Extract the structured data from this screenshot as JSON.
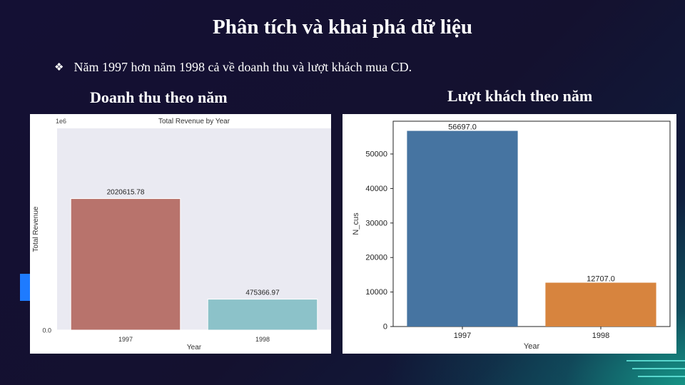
{
  "slide": {
    "title": "Phân tích và khai phá dữ liệu",
    "bullet_icon": "diamond-bullet-icon",
    "bullet": "Năm 1997 hơn năm 1998 cả về doanh thu và lượt khách mua CD.",
    "left_heading": "Doanh thu theo năm",
    "right_heading": "Lượt khách theo năm"
  },
  "chart_data": [
    {
      "type": "bar",
      "title": "Total Revenue by Year",
      "xlabel": "Year",
      "ylabel": "Total Revenue",
      "scale_label": "1e6",
      "categories": [
        "1997",
        "1998"
      ],
      "values": [
        2020615.78,
        475366.97
      ],
      "data_labels": [
        "2020615.78",
        "475366.97"
      ],
      "ylim": [
        0,
        3.1
      ],
      "yticks": [
        "0.0",
        "0.5",
        "1.0",
        "1.5",
        "2.0",
        "2.5",
        "3.0"
      ],
      "colors": [
        "#b8736c",
        "#8cc2c9"
      ],
      "grid": true
    },
    {
      "type": "bar",
      "title": "",
      "xlabel": "Year",
      "ylabel": "N_cus",
      "categories": [
        "1997",
        "1998"
      ],
      "values": [
        56697.0,
        12707.0
      ],
      "data_labels": [
        "56697.0",
        "12707.0"
      ],
      "ylim": [
        0,
        59500
      ],
      "yticks": [
        "0",
        "10000",
        "20000",
        "30000",
        "40000",
        "50000"
      ],
      "colors": [
        "#4674a1",
        "#d7843e"
      ],
      "grid": false
    }
  ]
}
